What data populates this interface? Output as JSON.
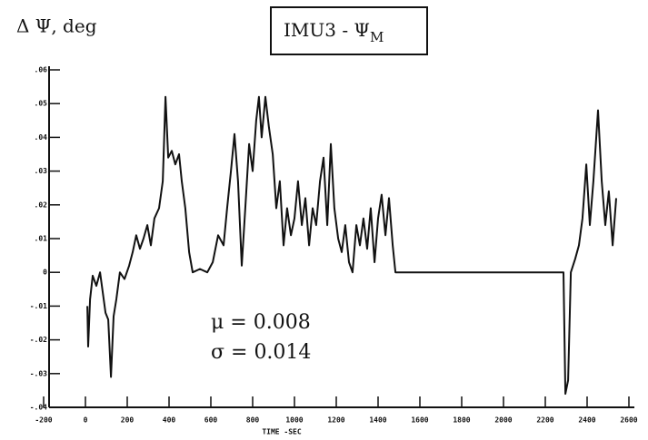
{
  "chart_data": {
    "type": "line",
    "title": "IMU3 - Ψ",
    "title_subscript": "M",
    "y_label": "Δ Ψ, deg",
    "x_label": "TIME -SEC",
    "annotations": [
      "μ  =  0.008",
      "σ  =  0.014"
    ],
    "xlim": [
      -200,
      2600
    ],
    "xticks": [
      -200,
      0,
      200,
      400,
      600,
      800,
      1000,
      1200,
      1400,
      1600,
      1800,
      2000,
      2200,
      2400,
      2600
    ],
    "ylim": [
      -0.04,
      0.06
    ],
    "yticks": [
      {
        "value": -0.04,
        "label": "-.04"
      },
      {
        "value": -0.03,
        "label": "-.03"
      },
      {
        "value": -0.02,
        "label": "-.02"
      },
      {
        "value": -0.01,
        "label": "-.01"
      },
      0,
      {
        "value": 0.01,
        "label": ".01"
      },
      {
        "value": 0.02,
        "label": ".02"
      },
      {
        "value": 0.03,
        "label": ".03"
      },
      {
        "value": 0.04,
        "label": ".04"
      },
      {
        "value": 0.05,
        "label": ".05"
      },
      {
        "value": 0.06,
        "label": ".06"
      }
    ],
    "color": "#111111",
    "x": [
      9,
      13,
      22,
      35,
      52,
      70,
      83,
      96,
      109,
      122,
      135,
      148,
      165,
      187,
      209,
      226,
      243,
      261,
      278,
      296,
      313,
      330,
      352,
      370,
      383,
      396,
      413,
      430,
      448,
      461,
      478,
      496,
      513,
      548,
      583,
      609,
      635,
      661,
      678,
      696,
      713,
      730,
      748,
      765,
      783,
      800,
      817,
      830,
      843,
      861,
      878,
      896,
      913,
      930,
      948,
      965,
      983,
      1000,
      1017,
      1035,
      1052,
      1070,
      1087,
      1104,
      1122,
      1139,
      1157,
      1174,
      1191,
      1209,
      1226,
      1243,
      1261,
      1278,
      1296,
      1313,
      1330,
      1348,
      1365,
      1383,
      1400,
      1417,
      1435,
      1452,
      1470,
      1483,
      1765,
      2287,
      2296,
      2309,
      2322,
      2343,
      2361,
      2378,
      2396,
      2413,
      2430,
      2452,
      2470,
      2487,
      2504,
      2522,
      2539
    ],
    "values": [
      -0.01,
      -0.022,
      -0.008,
      -0.001,
      -0.004,
      0,
      -0.006,
      -0.012,
      -0.014,
      -0.031,
      -0.013,
      -0.008,
      0,
      -0.002,
      0.002,
      0.006,
      0.011,
      0.007,
      0.01,
      0.014,
      0.008,
      0.016,
      0.019,
      0.027,
      0.052,
      0.034,
      0.036,
      0.032,
      0.035,
      0.027,
      0.019,
      0.006,
      0,
      0.001,
      0,
      0.003,
      0.011,
      0.008,
      0.019,
      0.03,
      0.041,
      0.027,
      0.002,
      0.019,
      0.038,
      0.03,
      0.045,
      0.052,
      0.04,
      0.052,
      0.043,
      0.035,
      0.019,
      0.027,
      0.008,
      0.019,
      0.011,
      0.016,
      0.027,
      0.014,
      0.022,
      0.008,
      0.019,
      0.014,
      0.027,
      0.034,
      0.014,
      0.038,
      0.019,
      0.01,
      0.006,
      0.014,
      0.003,
      0,
      0.014,
      0.008,
      0.016,
      0.007,
      0.019,
      0.003,
      0.016,
      0.023,
      0.011,
      0.022,
      0.008,
      0,
      0,
      0,
      -0.036,
      -0.032,
      0,
      0.004,
      0.008,
      0.016,
      0.032,
      0.014,
      0.027,
      0.048,
      0.027,
      0.014,
      0.024,
      0.008,
      0.022
    ]
  }
}
